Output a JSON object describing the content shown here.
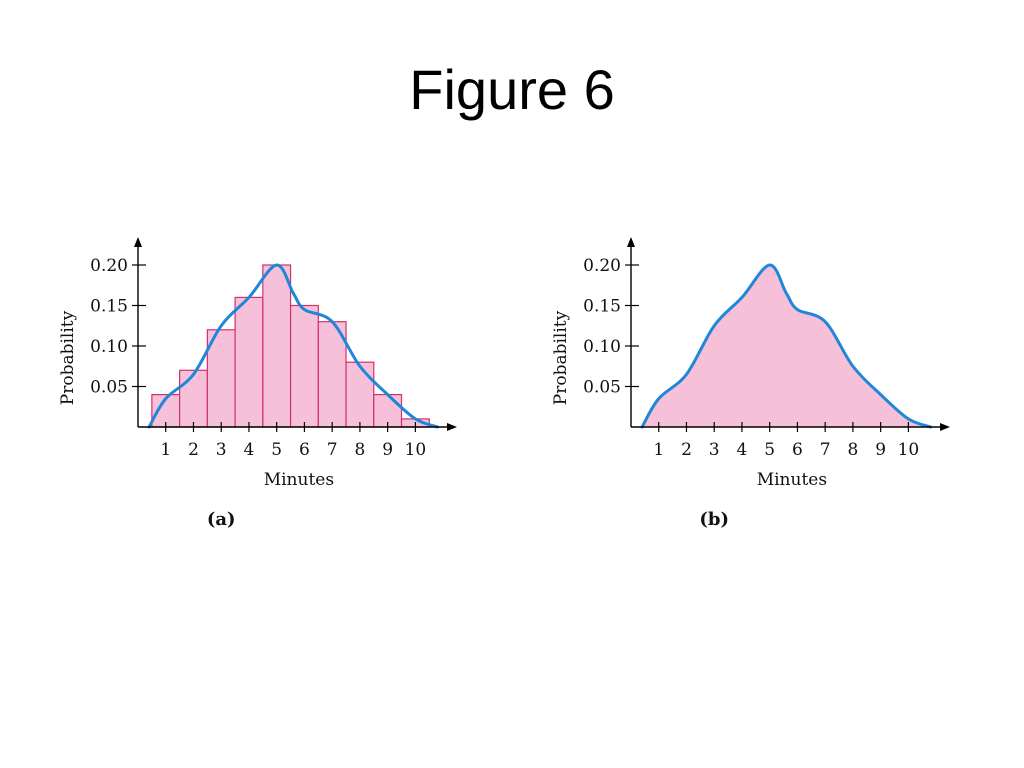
{
  "slide": {
    "title": "Figure 6"
  },
  "colors": {
    "bar_fill": "#f7c0d9",
    "bar_stroke": "#d0306e",
    "curve": "#1f86d9",
    "area_fill": "#f7c0d9",
    "axis": "#000000"
  },
  "chart_data": [
    {
      "type": "bar",
      "panel_label": "(a)",
      "title": "",
      "xlabel": "Minutes",
      "ylabel": "Probability",
      "categories": [
        "1",
        "2",
        "3",
        "4",
        "5",
        "6",
        "7",
        "8",
        "9",
        "10"
      ],
      "values": [
        0.04,
        0.07,
        0.12,
        0.16,
        0.2,
        0.15,
        0.13,
        0.08,
        0.04,
        0.01
      ],
      "x_ticks": [
        1,
        2,
        3,
        4,
        5,
        6,
        7,
        8,
        9,
        10
      ],
      "y_ticks": [
        "0.05",
        "0.10",
        "0.15",
        "0.20"
      ],
      "xlim": [
        0,
        11.5
      ],
      "ylim": [
        0,
        0.23
      ],
      "grid": false,
      "overlay_curve": {
        "type": "line",
        "x": [
          0.4,
          1,
          2,
          3,
          4,
          5,
          5.6,
          6,
          7,
          8,
          9,
          10,
          10.8
        ],
        "y": [
          0.0,
          0.035,
          0.065,
          0.125,
          0.16,
          0.2,
          0.165,
          0.145,
          0.13,
          0.075,
          0.04,
          0.01,
          0.0
        ]
      }
    },
    {
      "type": "area",
      "panel_label": "(b)",
      "title": "",
      "xlabel": "Minutes",
      "ylabel": "Probability",
      "x": [
        0.4,
        1,
        2,
        3,
        4,
        5,
        5.6,
        6,
        7,
        8,
        9,
        10,
        10.8
      ],
      "y": [
        0.0,
        0.035,
        0.065,
        0.125,
        0.16,
        0.2,
        0.165,
        0.145,
        0.13,
        0.075,
        0.04,
        0.01,
        0.0
      ],
      "x_ticks": [
        1,
        2,
        3,
        4,
        5,
        6,
        7,
        8,
        9,
        10
      ],
      "y_ticks": [
        "0.05",
        "0.10",
        "0.15",
        "0.20"
      ],
      "xlim": [
        0,
        11.5
      ],
      "ylim": [
        0,
        0.23
      ],
      "grid": false
    }
  ]
}
